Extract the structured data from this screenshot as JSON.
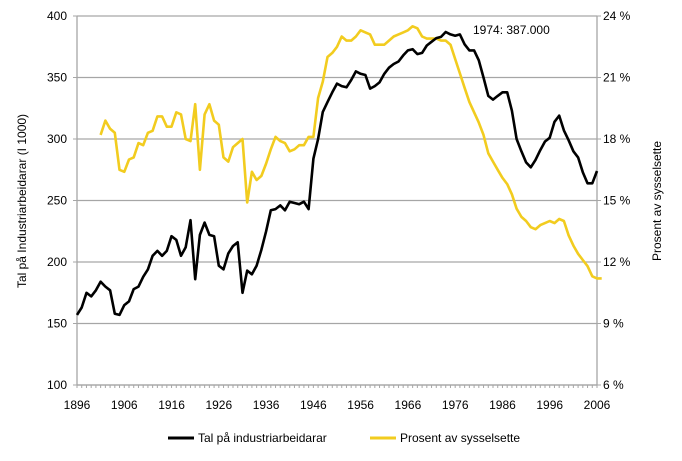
{
  "chart_data": {
    "type": "line",
    "title": "",
    "xlabel": "",
    "ylabel": "Tal på Industriarbeidarar (I 1000)",
    "y2label": "Prosent av sysselsette",
    "xlim": [
      1896,
      2006
    ],
    "ylim": [
      100,
      400
    ],
    "y2lim": [
      6,
      24
    ],
    "grid": true,
    "legend": "bottom",
    "x_ticks": [
      "1896",
      "1906",
      "1916",
      "1926",
      "1936",
      "1946",
      "1956",
      "1966",
      "1976",
      "1986",
      "1996",
      "2006"
    ],
    "y_ticks": [
      "100",
      "150",
      "200",
      "250",
      "300",
      "350",
      "400"
    ],
    "y2_ticks": [
      "6 %",
      "9 %",
      "12 %",
      "15 %",
      "18 %",
      "21 %",
      "24 %"
    ],
    "annotation": {
      "text": "1974: 387.000",
      "x": 1974,
      "y": 387
    },
    "colors": {
      "workers": "#000000",
      "percent": "#f2cc1f",
      "grid": "#a6a6a6"
    },
    "series": [
      {
        "name": "Tal på industriarbeidarar",
        "axis": "left",
        "start_year": 1896,
        "values": [
          157,
          163,
          175,
          172,
          177,
          184,
          180,
          177,
          158,
          157,
          165,
          168,
          178,
          180,
          188,
          194,
          205,
          209,
          205,
          209,
          221,
          218,
          205,
          212,
          234,
          186,
          222,
          232,
          222,
          221,
          197,
          194,
          207,
          213,
          216,
          175,
          193,
          190,
          197,
          210,
          225,
          242,
          243,
          246,
          242,
          249,
          248,
          247,
          249,
          243,
          284,
          300,
          322,
          330,
          338,
          345,
          343,
          342,
          348,
          355,
          353,
          352,
          341,
          343,
          346,
          353,
          358,
          361,
          363,
          368,
          372,
          373,
          369,
          370,
          376,
          379,
          382,
          383,
          387,
          385,
          384,
          385,
          377,
          372,
          372,
          364,
          350,
          335,
          332,
          335,
          338,
          338,
          323,
          300,
          290,
          281,
          277,
          283,
          291,
          298,
          301,
          314,
          319,
          307,
          299,
          290,
          285,
          273,
          264,
          264,
          274
        ]
      },
      {
        "name": "Prosent av sysselsette",
        "axis": "right",
        "start_year": 1901,
        "values": [
          18.2,
          18.9,
          18.5,
          18.3,
          16.5,
          16.4,
          17.0,
          17.1,
          17.8,
          17.7,
          18.3,
          18.4,
          19.1,
          19.1,
          18.6,
          18.6,
          19.3,
          19.2,
          18.0,
          17.9,
          19.7,
          16.5,
          19.2,
          19.7,
          18.9,
          18.7,
          17.1,
          16.9,
          17.6,
          17.8,
          18.0,
          14.9,
          16.4,
          16.0,
          16.2,
          16.8,
          17.5,
          18.1,
          17.9,
          17.8,
          17.4,
          17.5,
          17.7,
          17.7,
          18.1,
          18.1,
          20.0,
          20.8,
          22.0,
          22.2,
          22.5,
          23.0,
          22.8,
          22.8,
          23.0,
          23.3,
          23.2,
          23.1,
          22.6,
          22.6,
          22.6,
          22.8,
          23.0,
          23.1,
          23.2,
          23.3,
          23.5,
          23.4,
          23.0,
          22.9,
          22.9,
          22.9,
          22.8,
          22.8,
          22.6,
          21.9,
          21.2,
          20.5,
          19.8,
          19.3,
          18.8,
          18.2,
          17.3,
          16.9,
          16.5,
          16.1,
          15.8,
          15.3,
          14.6,
          14.2,
          14.0,
          13.7,
          13.6,
          13.8,
          13.9,
          14.0,
          13.9,
          14.1,
          14.0,
          13.3,
          12.8,
          12.4,
          12.1,
          11.8,
          11.3,
          11.2,
          11.2
        ]
      }
    ]
  }
}
